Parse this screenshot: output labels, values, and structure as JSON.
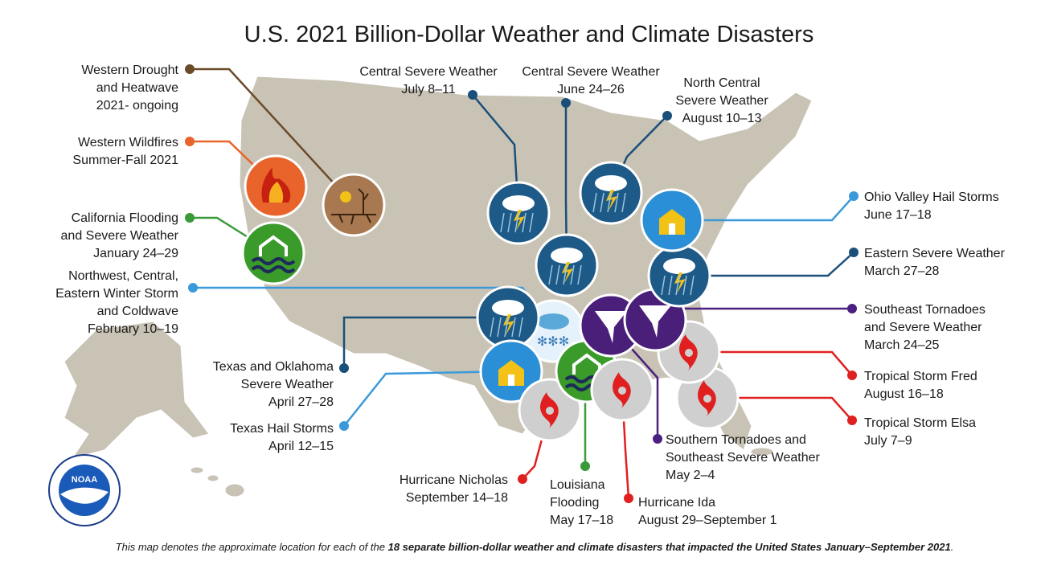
{
  "title": "U.S. 2021 Billion-Dollar Weather and Climate Disasters",
  "logo": {
    "label": "NOAA"
  },
  "disasters": [
    {
      "lines": [
        "Western Drought",
        "and Heatwave",
        "2021- ongoing"
      ],
      "color": "#6b4a2a"
    },
    {
      "lines": [
        "Western Wildfires",
        "Summer-Fall 2021"
      ],
      "color": "#e8642a"
    },
    {
      "lines": [
        "California Flooding",
        "and Severe Weather",
        "January 24–29"
      ],
      "color": "#3a9a3a"
    },
    {
      "lines": [
        "Northwest, Central,",
        "Eastern Winter Storm",
        "and Coldwave",
        "February 10–19"
      ],
      "color": "#3a9ad9"
    },
    {
      "lines": [
        "Texas and Oklahoma",
        "Severe Weather",
        "April 27–28"
      ],
      "color": "#1a4f7a"
    },
    {
      "lines": [
        "Texas Hail Storms",
        "April 12–15"
      ],
      "color": "#3a9ad9"
    },
    {
      "lines": [
        "Hurricane Nicholas",
        "September 14–18"
      ],
      "color": "#e02020"
    },
    {
      "lines": [
        "Louisiana",
        "Flooding",
        "May 17–18"
      ],
      "color": "#3a9a3a"
    },
    {
      "lines": [
        "Hurricane Ida",
        "August 29–September 1"
      ],
      "color": "#e02020"
    },
    {
      "lines": [
        "Southern Tornadoes and",
        "Southeast Severe Weather",
        "May 2–4"
      ],
      "color": "#4a2080"
    },
    {
      "lines": [
        "Tropical Storm Elsa",
        "July 7–9"
      ],
      "color": "#e02020"
    },
    {
      "lines": [
        "Tropical Storm Fred",
        "August 16–18"
      ],
      "color": "#e02020"
    },
    {
      "lines": [
        "Southeast Tornadoes",
        "and Severe Weather",
        "March 24–25"
      ],
      "color": "#4a2080"
    },
    {
      "lines": [
        "Eastern Severe Weather",
        "March 27–28"
      ],
      "color": "#1a4f7a"
    },
    {
      "lines": [
        "Ohio Valley Hail Storms",
        "June 17–18"
      ],
      "color": "#3a9ad9"
    },
    {
      "lines": [
        "North Central",
        "Severe Weather",
        "August 10–13"
      ],
      "color": "#1a4f7a"
    },
    {
      "lines": [
        "Central Severe Weather",
        "June 24–26"
      ],
      "color": "#1a4f7a"
    },
    {
      "lines": [
        "Central Severe Weather",
        "July 8–11"
      ],
      "color": "#1a4f7a"
    }
  ],
  "footnote": {
    "parts": [
      "This map denotes the approximate location for each of the ",
      "18 separate billion-dollar weather and climate disasters that impacted the United States January–September 2021",
      "."
    ]
  }
}
